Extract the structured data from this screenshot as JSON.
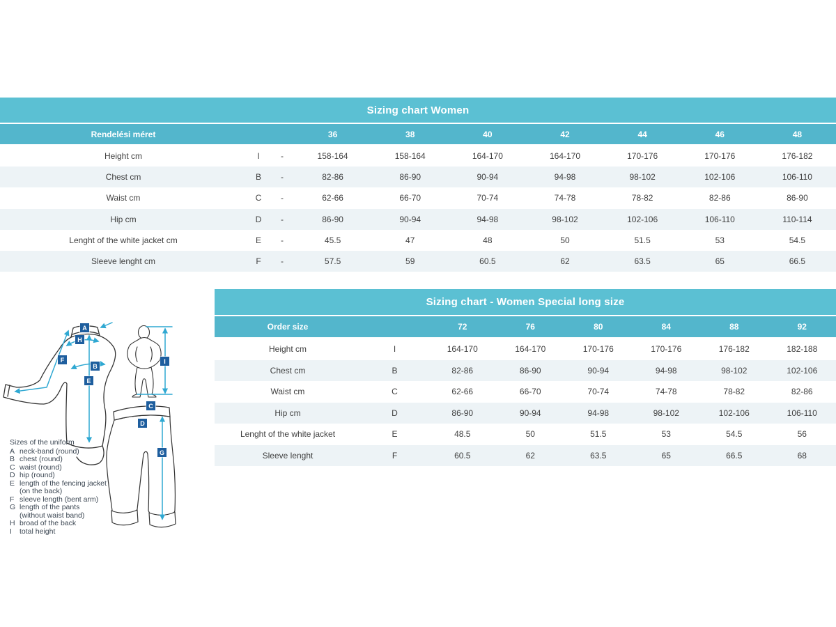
{
  "colors": {
    "title_bar": "#5bc0d3",
    "header_bar": "#53b6cc",
    "row_alt": "#edf3f6",
    "cell_text": "#3f3f3f",
    "marker_blue": "#1e5e9e",
    "arrow_cyan": "#2fa8d2"
  },
  "table_women": {
    "title": "Sizing chart Women",
    "header": [
      "Rendelési méret",
      "",
      "",
      "36",
      "38",
      "40",
      "42",
      "44",
      "46",
      "48"
    ],
    "rows": [
      [
        "Height cm",
        "I",
        "-",
        "158-164",
        "158-164",
        "164-170",
        "164-170",
        "170-176",
        "170-176",
        "176-182"
      ],
      [
        "Chest cm",
        "B",
        "-",
        "82-86",
        "86-90",
        "90-94",
        "94-98",
        "98-102",
        "102-106",
        "106-110"
      ],
      [
        "Waist cm",
        "C",
        "-",
        "62-66",
        "66-70",
        "70-74",
        "74-78",
        "78-82",
        "82-86",
        "86-90"
      ],
      [
        "Hip cm",
        "D",
        "-",
        "86-90",
        "90-94",
        "94-98",
        "98-102",
        "102-106",
        "106-110",
        "110-114"
      ],
      [
        "Lenght of the white jacket cm",
        "E",
        "-",
        "45.5",
        "47",
        "48",
        "50",
        "51.5",
        "53",
        "54.5"
      ],
      [
        "Sleeve lenght cm",
        "F",
        "-",
        "57.5",
        "59",
        "60.5",
        "62",
        "63.5",
        "65",
        "66.5"
      ]
    ]
  },
  "table_women_long": {
    "title": "Sizing chart - Women Special long size",
    "header": [
      "Order size",
      "",
      "72",
      "76",
      "80",
      "84",
      "88",
      "92"
    ],
    "rows": [
      [
        "Height cm",
        "I",
        "164-170",
        "164-170",
        "170-176",
        "170-176",
        "176-182",
        "182-188"
      ],
      [
        "Chest cm",
        "B",
        "82-86",
        "86-90",
        "90-94",
        "94-98",
        "98-102",
        "102-106"
      ],
      [
        "Waist cm",
        "C",
        "62-66",
        "66-70",
        "70-74",
        "74-78",
        "78-82",
        "82-86"
      ],
      [
        "Hip cm",
        "D",
        "86-90",
        "90-94",
        "94-98",
        "98-102",
        "102-106",
        "106-110"
      ],
      [
        "Lenght of the white jacket",
        "E",
        "48.5",
        "50",
        "51.5",
        "53",
        "54.5",
        "56"
      ],
      [
        "Sleeve lenght",
        "F",
        "60.5",
        "62",
        "63.5",
        "65",
        "66.5",
        "68"
      ]
    ]
  },
  "diagram": {
    "markers": {
      "A": "A",
      "B": "B",
      "C": "C",
      "D": "D",
      "E": "E",
      "F": "F",
      "G": "G",
      "H": "H",
      "I": "I"
    },
    "legend_title": "Sizes of the uniform",
    "legend_items": [
      {
        "key": "A",
        "lines": [
          "neck-band (round)"
        ]
      },
      {
        "key": "B",
        "lines": [
          "chest (round)"
        ]
      },
      {
        "key": "C",
        "lines": [
          "waist (round)"
        ]
      },
      {
        "key": "D",
        "lines": [
          "hip (round)"
        ]
      },
      {
        "key": "E",
        "lines": [
          "length of the fencing jacket",
          "(on the back)"
        ]
      },
      {
        "key": "F",
        "lines": [
          "sleeve length (bent arm)"
        ]
      },
      {
        "key": "G",
        "lines": [
          "length of the pants",
          "(without waist band)"
        ]
      },
      {
        "key": "H",
        "lines": [
          "broad of the back"
        ]
      },
      {
        "key": "I",
        "lines": [
          "total height"
        ]
      }
    ]
  }
}
